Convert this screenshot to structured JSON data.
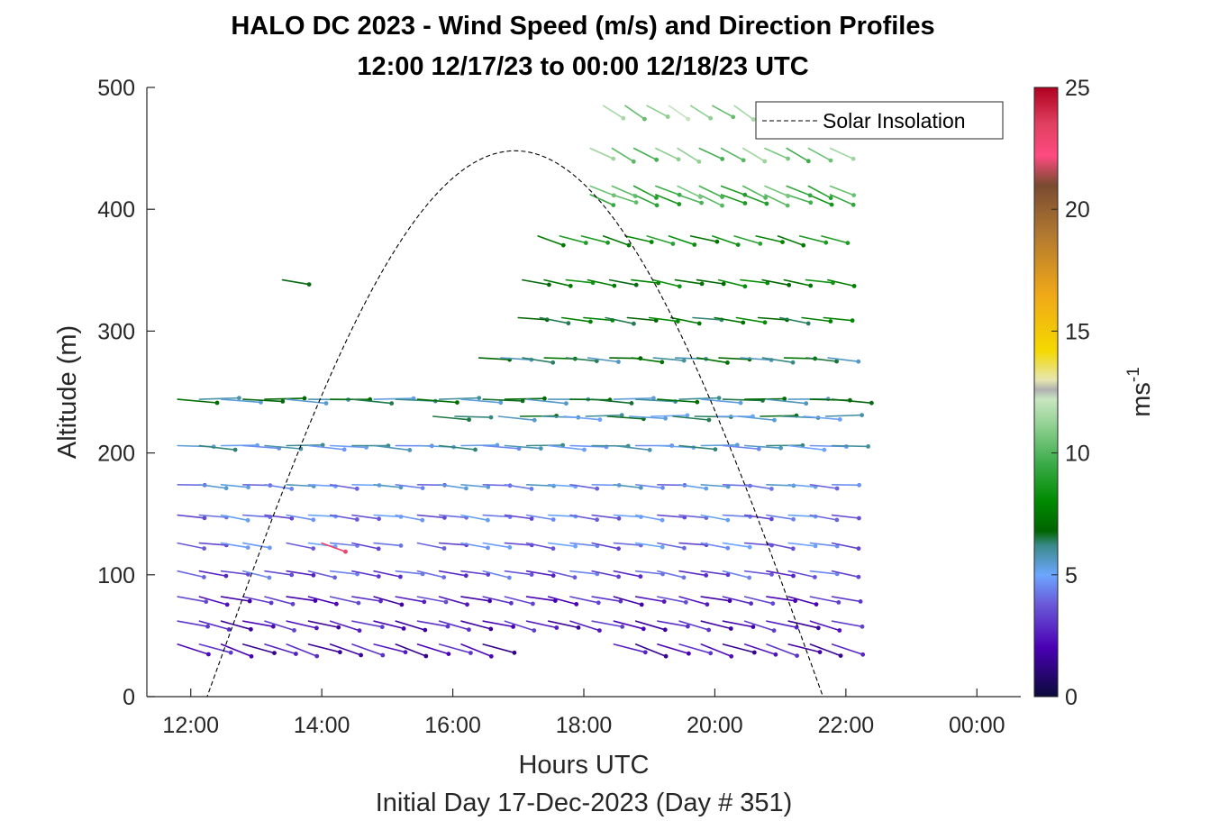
{
  "chart_data": {
    "type": "quiver",
    "title": "HALO DC 2023 - Wind Speed (m/s) and Direction Profiles",
    "subtitle": "12:00 12/17/23 to 00:00 12/18/23  UTC",
    "xlabel": "Hours UTC",
    "xlabel2": "Initial Day 17-Dec-2023 (Day # 351)",
    "ylabel": "Altitude (m)",
    "xlim": [
      11.33,
      24.67
    ],
    "ylim": [
      0,
      500
    ],
    "xticks": [
      12,
      14,
      16,
      18,
      20,
      22,
      24
    ],
    "xticklabels": [
      "12:00",
      "14:00",
      "16:00",
      "18:00",
      "20:00",
      "22:00",
      "00:00"
    ],
    "yticks": [
      0,
      100,
      200,
      300,
      400,
      500
    ],
    "yticklabels": [
      "0",
      "100",
      "200",
      "300",
      "400",
      "500"
    ],
    "legend": {
      "entries": [
        "Solar Insolation"
      ],
      "placement": "top-right"
    },
    "colorbar": {
      "label": "ms",
      "label_exponent": "-1",
      "range": [
        0,
        25
      ],
      "ticks": [
        0,
        5,
        10,
        15,
        20,
        25
      ],
      "ticklabels": [
        "0",
        "5",
        "10",
        "15",
        "20",
        "25"
      ],
      "stops": [
        {
          "v": 0,
          "c": "#0a0a3a"
        },
        {
          "v": 2,
          "c": "#4a00b4"
        },
        {
          "v": 3.8,
          "c": "#6a5ad8"
        },
        {
          "v": 5,
          "c": "#6ca6ff"
        },
        {
          "v": 6.2,
          "c": "#3a8a8a"
        },
        {
          "v": 6.8,
          "c": "#006400"
        },
        {
          "v": 8,
          "c": "#008a00"
        },
        {
          "v": 9.6,
          "c": "#3cac4a"
        },
        {
          "v": 11.3,
          "c": "#9ad49a"
        },
        {
          "v": 12.2,
          "c": "#c8e6c0"
        },
        {
          "v": 12.6,
          "c": "#b0b0b0"
        },
        {
          "v": 13,
          "c": "#e6e6b0"
        },
        {
          "v": 14.2,
          "c": "#f4d800"
        },
        {
          "v": 16.5,
          "c": "#f0a818"
        },
        {
          "v": 19,
          "c": "#b07830"
        },
        {
          "v": 21,
          "c": "#7a4a30"
        },
        {
          "v": 22.2,
          "c": "#ff4a80"
        },
        {
          "v": 23.5,
          "c": "#e04060"
        },
        {
          "v": 25,
          "c": "#b00020"
        }
      ]
    },
    "solar_insolation": {
      "start_hour": 12.25,
      "end_hour": 21.65,
      "peak_hour": 16.95,
      "peak_altitude": 448,
      "style": "dashed",
      "color": "#000000"
    },
    "barbs": {
      "time_step_hours": 0.333,
      "rows": [
        {
          "altitude": 43,
          "start": 11.8,
          "end": 21.8,
          "speed": 2.2,
          "angle": -18,
          "length": 36,
          "gaps": [
            [
              16.7,
              18.2
            ]
          ]
        },
        {
          "altitude": 62,
          "start": 11.8,
          "end": 21.8,
          "speed": 2.4,
          "angle": -14,
          "length": 34,
          "gaps": []
        },
        {
          "altitude": 82,
          "start": 11.8,
          "end": 21.8,
          "speed": 2.6,
          "angle": -12,
          "length": 32,
          "gaps": []
        },
        {
          "altitude": 103,
          "start": 11.8,
          "end": 21.8,
          "speed": 3.6,
          "angle": -10,
          "length": 30,
          "gaps": []
        },
        {
          "altitude": 126,
          "start": 11.8,
          "end": 21.8,
          "speed": 4.2,
          "angle": -8,
          "length": 30,
          "gaps": [
            [
              12.8,
              13.4
            ],
            [
              14.8,
              15.3
            ]
          ]
        },
        {
          "altitude": 149,
          "start": 11.8,
          "end": 21.8,
          "speed": 4.3,
          "angle": -7,
          "length": 30,
          "gaps": []
        },
        {
          "altitude": 174,
          "start": 11.8,
          "end": 21.8,
          "speed": 4.8,
          "angle": -5,
          "length": 30,
          "gaps": []
        },
        {
          "altitude": 206,
          "start": 11.8,
          "end": 21.8,
          "speed": 5.4,
          "angle": -3,
          "length": 40,
          "gaps": []
        },
        {
          "altitude": 230,
          "start": 15.7,
          "end": 21.8,
          "speed": 5.8,
          "angle": -2,
          "length": 40,
          "gaps": [
            [
              16.1,
              16.4
            ]
          ]
        },
        {
          "altitude": 244,
          "start": 11.8,
          "end": 21.8,
          "speed": 6.2,
          "angle": -2,
          "length": 44,
          "gaps": []
        },
        {
          "altitude": 278,
          "start": 16.4,
          "end": 21.8,
          "speed": 6.5,
          "angle": -5,
          "length": 34,
          "gaps": []
        },
        {
          "altitude": 311,
          "start": 17.0,
          "end": 21.8,
          "speed": 7.2,
          "angle": -8,
          "length": 32,
          "gaps": []
        },
        {
          "altitude": 342,
          "start": 13.4,
          "end": 21.8,
          "speed": 7.6,
          "angle": -10,
          "length": 30,
          "gaps": [
            [
              13.5,
              17.0
            ]
          ]
        },
        {
          "altitude": 378,
          "start": 17.3,
          "end": 21.8,
          "speed": 8.2,
          "angle": -16,
          "length": 30,
          "gaps": []
        },
        {
          "altitude": 412,
          "start": 18.1,
          "end": 21.8,
          "speed": 9.4,
          "angle": -22,
          "length": 28,
          "gaps": []
        },
        {
          "altitude": 419,
          "start": 18.1,
          "end": 21.8,
          "speed": 9.8,
          "angle": -24,
          "length": 28,
          "gaps": []
        },
        {
          "altitude": 450,
          "start": 18.1,
          "end": 21.8,
          "speed": 10.5,
          "angle": -28,
          "length": 28,
          "gaps": []
        },
        {
          "altitude": 485,
          "start": 18.3,
          "end": 21.8,
          "speed": 11.2,
          "angle": -32,
          "length": 26,
          "gaps": []
        }
      ],
      "outliers": [
        {
          "hour": 14.0,
          "altitude": 126,
          "speed": 23,
          "angle": -20,
          "length": 28
        }
      ]
    }
  }
}
